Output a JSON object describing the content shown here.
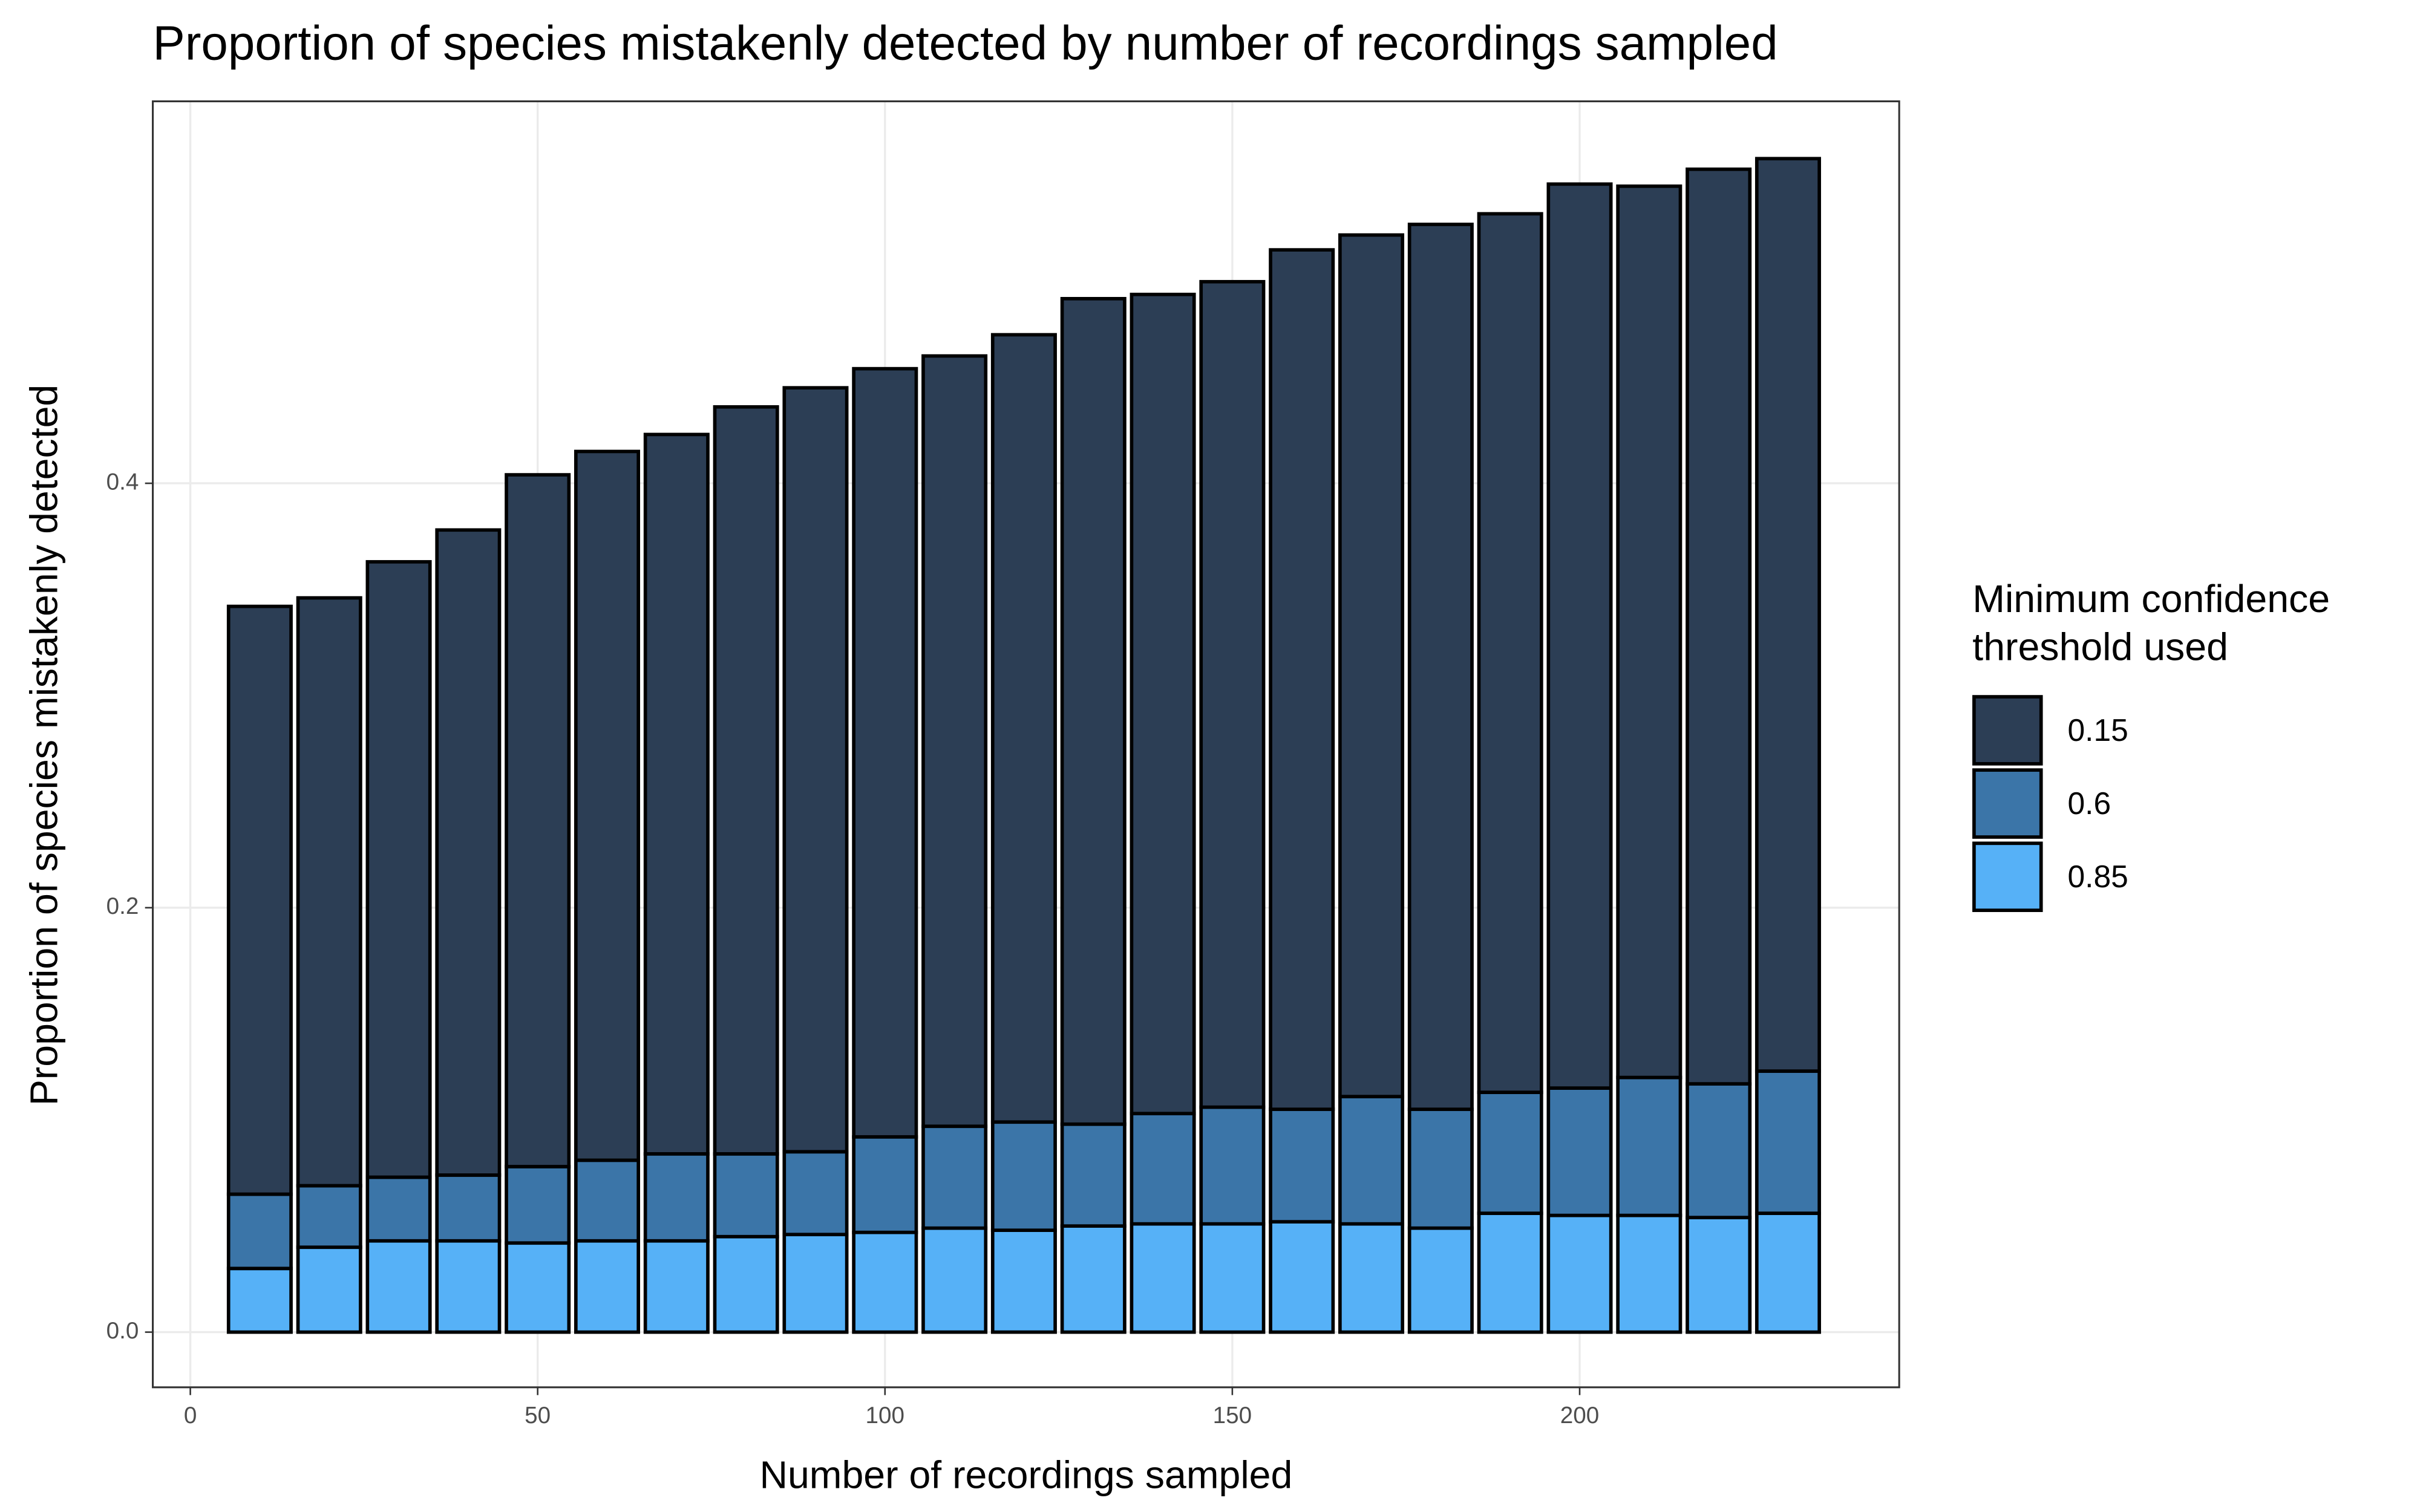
{
  "chart_data": {
    "type": "bar",
    "stacked": true,
    "title": "Proportion of species mistakenly detected by number of recordings sampled",
    "x_label": "Number of recordings sampled",
    "y_label": "Proportion of species mistakenly detected",
    "legend_title": [
      "Minimum confidence",
      "threshold used"
    ],
    "legend_position": "right",
    "grid": true,
    "x": [
      10,
      20,
      30,
      40,
      50,
      60,
      70,
      80,
      90,
      100,
      110,
      120,
      130,
      140,
      150,
      160,
      170,
      180,
      190,
      200,
      210,
      220,
      230
    ],
    "series": [
      {
        "name": "0.15",
        "color": "#2c3e55",
        "values": [
          0.277,
          0.277,
          0.29,
          0.304,
          0.326,
          0.334,
          0.339,
          0.352,
          0.36,
          0.362,
          0.363,
          0.371,
          0.389,
          0.386,
          0.389,
          0.405,
          0.406,
          0.417,
          0.414,
          0.426,
          0.42,
          0.431,
          0.43
        ]
      },
      {
        "name": "0.6",
        "color": "#3b75a8",
        "values": [
          0.035,
          0.029,
          0.03,
          0.031,
          0.036,
          0.038,
          0.041,
          0.039,
          0.039,
          0.045,
          0.048,
          0.051,
          0.048,
          0.052,
          0.055,
          0.053,
          0.06,
          0.056,
          0.057,
          0.06,
          0.065,
          0.063,
          0.067
        ]
      },
      {
        "name": "0.85",
        "color": "#56b1f7",
        "values": [
          0.03,
          0.04,
          0.043,
          0.043,
          0.042,
          0.043,
          0.043,
          0.045,
          0.046,
          0.047,
          0.049,
          0.048,
          0.05,
          0.051,
          0.051,
          0.052,
          0.051,
          0.049,
          0.056,
          0.055,
          0.055,
          0.054,
          0.056
        ]
      }
    ],
    "xlim": [
      -5.4,
      246
    ],
    "xticks": [
      0,
      50,
      100,
      150,
      200
    ],
    "ylim": [
      -0.026,
      0.58
    ],
    "yticks": [
      {
        "value": 0,
        "label": "0.0"
      },
      0.2,
      0.4
    ]
  }
}
